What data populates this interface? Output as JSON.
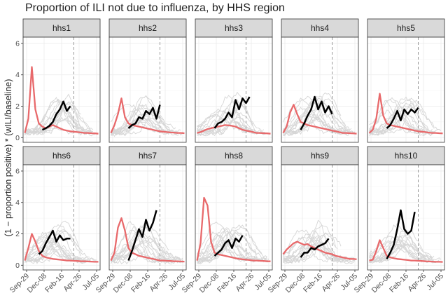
{
  "chart_data": {
    "type": "line",
    "title": "Proportion of ILI not due to influenza, by HHS region",
    "ylabel": "(1 − proportion positive) * (wILI/baseline)",
    "xlabel": "",
    "x_ticks": [
      "Sep-29",
      "Dec-08",
      "Feb-16",
      "Apr-26",
      "Jul-05"
    ],
    "x_range_weeks": [
      -1,
      43
    ],
    "y_ticks": [
      0,
      2,
      4,
      6
    ],
    "ylim": [
      -0.3,
      6.4
    ],
    "grid": true,
    "current_week_marker_week": 28,
    "series_styles": {
      "historical_seasons": "#d6d6d6",
      "peak_season": "#e8696b",
      "current_season": "#000000"
    },
    "weeks": [
      0,
      2,
      4,
      6,
      8,
      10,
      12,
      14,
      16,
      18,
      20,
      22,
      24,
      26,
      28,
      30,
      32,
      34,
      36,
      38,
      40,
      42
    ],
    "panels": [
      {
        "label": "hhs1",
        "red": [
          0.3,
          1.2,
          4.5,
          1.8,
          0.9,
          0.7,
          0.6,
          0.7,
          0.8,
          0.7,
          0.6,
          0.5,
          0.45,
          0.4,
          0.38,
          0.35,
          0.33,
          0.3,
          0.3,
          0.28,
          0.27,
          0.25
        ],
        "black": [
          null,
          null,
          null,
          null,
          null,
          0.5,
          0.6,
          0.75,
          1.0,
          1.5,
          1.8,
          2.3,
          1.7,
          2.0,
          null,
          null,
          null,
          null,
          null,
          null,
          null,
          null
        ]
      },
      {
        "label": "hhs2",
        "red": [
          0.3,
          0.8,
          1.5,
          2.5,
          1.3,
          0.9,
          0.8,
          0.75,
          0.7,
          0.65,
          0.6,
          0.55,
          0.5,
          0.45,
          0.4,
          0.38,
          0.35,
          0.33,
          0.32,
          0.3,
          0.3,
          0.28
        ],
        "black": [
          null,
          null,
          null,
          null,
          null,
          0.6,
          0.8,
          0.9,
          1.3,
          1.2,
          1.7,
          1.5,
          1.9,
          1.2,
          2.1,
          null,
          null,
          null,
          null,
          null,
          null,
          null
        ]
      },
      {
        "label": "hhs3",
        "red": [
          0.3,
          0.35,
          0.45,
          0.55,
          0.6,
          0.65,
          0.7,
          0.75,
          0.8,
          0.78,
          0.75,
          0.7,
          0.6,
          0.5,
          0.45,
          0.4,
          0.35,
          0.3,
          0.3,
          0.28,
          0.27,
          0.25
        ],
        "black": [
          null,
          null,
          null,
          null,
          null,
          0.6,
          0.9,
          1.0,
          1.2,
          1.6,
          1.3,
          2.4,
          1.8,
          2.5,
          2.2,
          2.6,
          null,
          null,
          null,
          null,
          null,
          null
        ]
      },
      {
        "label": "hhs4",
        "red": [
          0.3,
          0.7,
          1.6,
          2.1,
          1.5,
          1.0,
          0.9,
          0.8,
          0.75,
          0.7,
          0.65,
          0.6,
          0.55,
          0.5,
          0.45,
          0.4,
          0.35,
          0.3,
          0.3,
          0.28,
          0.27,
          0.25
        ],
        "black": [
          null,
          null,
          null,
          null,
          null,
          0.5,
          0.9,
          1.4,
          1.8,
          2.6,
          1.8,
          2.3,
          1.6,
          2.0,
          1.5,
          null,
          null,
          null,
          null,
          null,
          null,
          null
        ]
      },
      {
        "label": "hhs5",
        "red": [
          0.3,
          0.5,
          1.2,
          2.8,
          1.4,
          0.9,
          0.8,
          0.75,
          0.7,
          0.65,
          0.6,
          0.55,
          0.5,
          0.45,
          0.4,
          0.38,
          0.35,
          0.32,
          0.3,
          0.3,
          0.28,
          0.27
        ],
        "black": [
          null,
          null,
          null,
          null,
          null,
          0.6,
          0.8,
          1.2,
          1.7,
          1.1,
          1.8,
          1.5,
          1.8,
          1.6,
          1.9,
          null,
          null,
          null,
          null,
          null,
          null,
          null
        ]
      },
      {
        "label": "hhs6",
        "red": [
          0.3,
          1.1,
          2.0,
          1.5,
          0.9,
          0.6,
          0.5,
          0.45,
          0.4,
          0.38,
          0.35,
          0.33,
          0.3,
          0.3,
          0.28,
          0.27,
          0.25,
          0.25,
          0.24,
          0.23,
          0.22,
          0.22
        ],
        "black": [
          null,
          null,
          null,
          null,
          0.7,
          0.9,
          1.4,
          1.8,
          2.2,
          1.5,
          1.9,
          1.6,
          1.7,
          1.7,
          null,
          null,
          null,
          null,
          null,
          null,
          null,
          null
        ]
      },
      {
        "label": "hhs7",
        "red": [
          0.3,
          0.8,
          2.4,
          3.0,
          2.2,
          1.1,
          0.8,
          0.7,
          0.6,
          0.55,
          0.5,
          0.45,
          0.4,
          0.35,
          0.3,
          0.3,
          0.28,
          0.27,
          0.25,
          0.25,
          0.24,
          0.23
        ],
        "black": [
          null,
          null,
          null,
          null,
          null,
          0.3,
          0.9,
          1.6,
          2.3,
          1.8,
          2.9,
          2.2,
          2.7,
          3.5,
          null,
          null,
          null,
          null,
          null,
          null,
          null,
          null
        ]
      },
      {
        "label": "hhs8",
        "red": [
          0.3,
          1.4,
          4.3,
          3.8,
          1.5,
          0.8,
          0.7,
          0.65,
          0.6,
          0.55,
          0.5,
          0.45,
          0.4,
          0.38,
          0.35,
          0.33,
          0.3,
          0.3,
          0.28,
          0.27,
          0.25,
          0.25
        ],
        "black": [
          null,
          null,
          null,
          null,
          null,
          0.6,
          0.8,
          1.0,
          1.4,
          1.6,
          1.1,
          1.7,
          1.5,
          1.9,
          null,
          null,
          null,
          null,
          null,
          null,
          null,
          null
        ]
      },
      {
        "label": "hhs9",
        "red": [
          0.7,
          1.0,
          1.2,
          1.4,
          1.5,
          1.4,
          1.3,
          1.35,
          1.2,
          1.1,
          1.0,
          0.9,
          0.8,
          0.75,
          0.7,
          0.6,
          0.55,
          0.5,
          0.45,
          0.4,
          0.4,
          0.38
        ],
        "black": [
          null,
          null,
          null,
          null,
          null,
          0.5,
          0.8,
          0.8,
          1.1,
          1.0,
          1.2,
          1.3,
          1.4,
          1.7,
          null,
          null,
          null,
          null,
          null,
          null,
          null,
          null
        ]
      },
      {
        "label": "hhs10",
        "red": [
          0.3,
          0.35,
          0.9,
          1.6,
          1.1,
          0.6,
          0.5,
          0.45,
          0.4,
          0.38,
          0.35,
          0.33,
          0.3,
          0.3,
          0.28,
          0.27,
          0.25,
          0.24,
          0.23,
          0.22,
          0.22,
          0.21
        ],
        "black": [
          null,
          null,
          null,
          null,
          null,
          0.4,
          0.8,
          1.3,
          2.3,
          3.5,
          2.3,
          2.0,
          2.2,
          3.4,
          null,
          null,
          null,
          null,
          null,
          null,
          null,
          null
        ]
      }
    ]
  }
}
